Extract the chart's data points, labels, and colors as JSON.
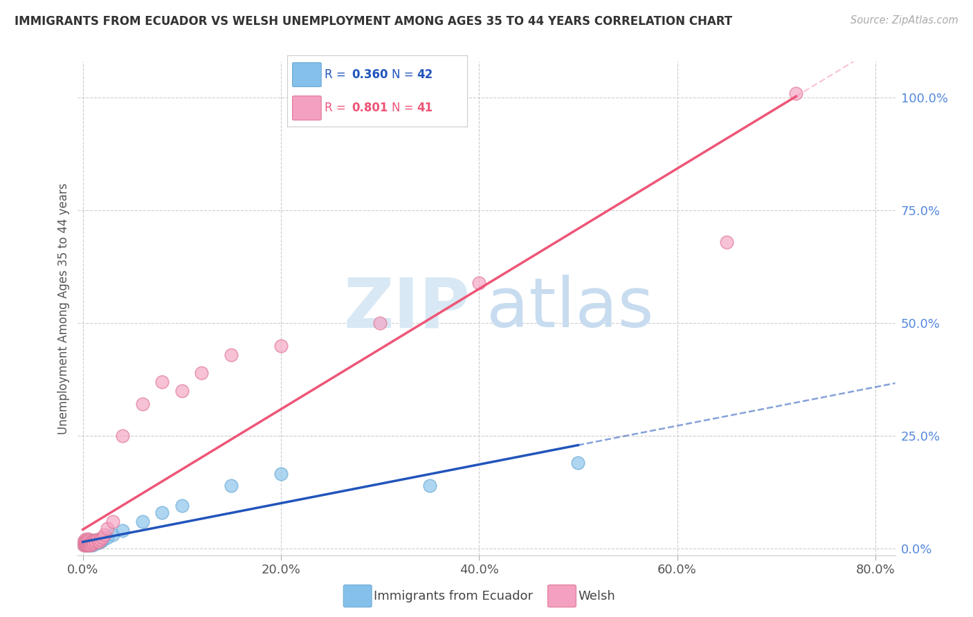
{
  "title": "IMMIGRANTS FROM ECUADOR VS WELSH UNEMPLOYMENT AMONG AGES 35 TO 44 YEARS CORRELATION CHART",
  "source": "Source: ZipAtlas.com",
  "ylabel": "Unemployment Among Ages 35 to 44 years",
  "xlim": [
    -0.005,
    0.82
  ],
  "ylim": [
    -0.015,
    1.08
  ],
  "xticks": [
    0.0,
    0.2,
    0.4,
    0.6,
    0.8
  ],
  "xtick_labels": [
    "0.0%",
    "20.0%",
    "40.0%",
    "60.0%",
    "80.0%"
  ],
  "yticks_right": [
    0.0,
    0.25,
    0.5,
    0.75,
    1.0
  ],
  "ytick_labels_right": [
    "0.0%",
    "25.0%",
    "50.0%",
    "75.0%",
    "100.0%"
  ],
  "bottom_legend_labels": [
    "Immigrants from Ecuador",
    "Welsh"
  ],
  "R_ecuador": 0.36,
  "N_ecuador": 42,
  "R_welsh": 0.801,
  "N_welsh": 41,
  "ecuador_color": "#85C0EA",
  "welsh_color": "#F4A0C0",
  "ecuador_edge_color": "#6AAAD4",
  "welsh_edge_color": "#E07898",
  "ecuador_line_color": "#2255BB",
  "welsh_line_color": "#EE5577",
  "watermark_zip": "ZIP",
  "watermark_atlas": "atlas",
  "background_color": "#FFFFFF",
  "ecuador_x": [
    0.001,
    0.002,
    0.002,
    0.003,
    0.003,
    0.003,
    0.004,
    0.004,
    0.004,
    0.005,
    0.005,
    0.005,
    0.005,
    0.006,
    0.006,
    0.007,
    0.007,
    0.007,
    0.008,
    0.008,
    0.009,
    0.009,
    0.01,
    0.01,
    0.011,
    0.012,
    0.013,
    0.014,
    0.015,
    0.016,
    0.018,
    0.02,
    0.025,
    0.03,
    0.04,
    0.06,
    0.08,
    0.1,
    0.15,
    0.2,
    0.35,
    0.5
  ],
  "ecuador_y": [
    0.01,
    0.01,
    0.015,
    0.008,
    0.012,
    0.015,
    0.01,
    0.012,
    0.018,
    0.008,
    0.01,
    0.012,
    0.015,
    0.01,
    0.015,
    0.008,
    0.012,
    0.018,
    0.01,
    0.015,
    0.01,
    0.018,
    0.008,
    0.015,
    0.012,
    0.015,
    0.018,
    0.015,
    0.012,
    0.02,
    0.015,
    0.018,
    0.025,
    0.03,
    0.04,
    0.06,
    0.08,
    0.095,
    0.14,
    0.165,
    0.14,
    0.19
  ],
  "welsh_x": [
    0.001,
    0.001,
    0.002,
    0.002,
    0.002,
    0.003,
    0.003,
    0.003,
    0.004,
    0.004,
    0.005,
    0.005,
    0.005,
    0.006,
    0.006,
    0.007,
    0.007,
    0.008,
    0.009,
    0.01,
    0.011,
    0.012,
    0.013,
    0.015,
    0.016,
    0.018,
    0.02,
    0.022,
    0.025,
    0.03,
    0.04,
    0.06,
    0.08,
    0.1,
    0.12,
    0.15,
    0.2,
    0.3,
    0.4,
    0.65,
    0.72
  ],
  "welsh_y": [
    0.008,
    0.015,
    0.008,
    0.012,
    0.02,
    0.008,
    0.012,
    0.018,
    0.01,
    0.015,
    0.008,
    0.015,
    0.022,
    0.01,
    0.018,
    0.008,
    0.015,
    0.012,
    0.01,
    0.015,
    0.012,
    0.018,
    0.015,
    0.02,
    0.015,
    0.02,
    0.025,
    0.03,
    0.045,
    0.06,
    0.25,
    0.32,
    0.37,
    0.35,
    0.39,
    0.43,
    0.45,
    0.5,
    0.59,
    0.68,
    1.01
  ]
}
